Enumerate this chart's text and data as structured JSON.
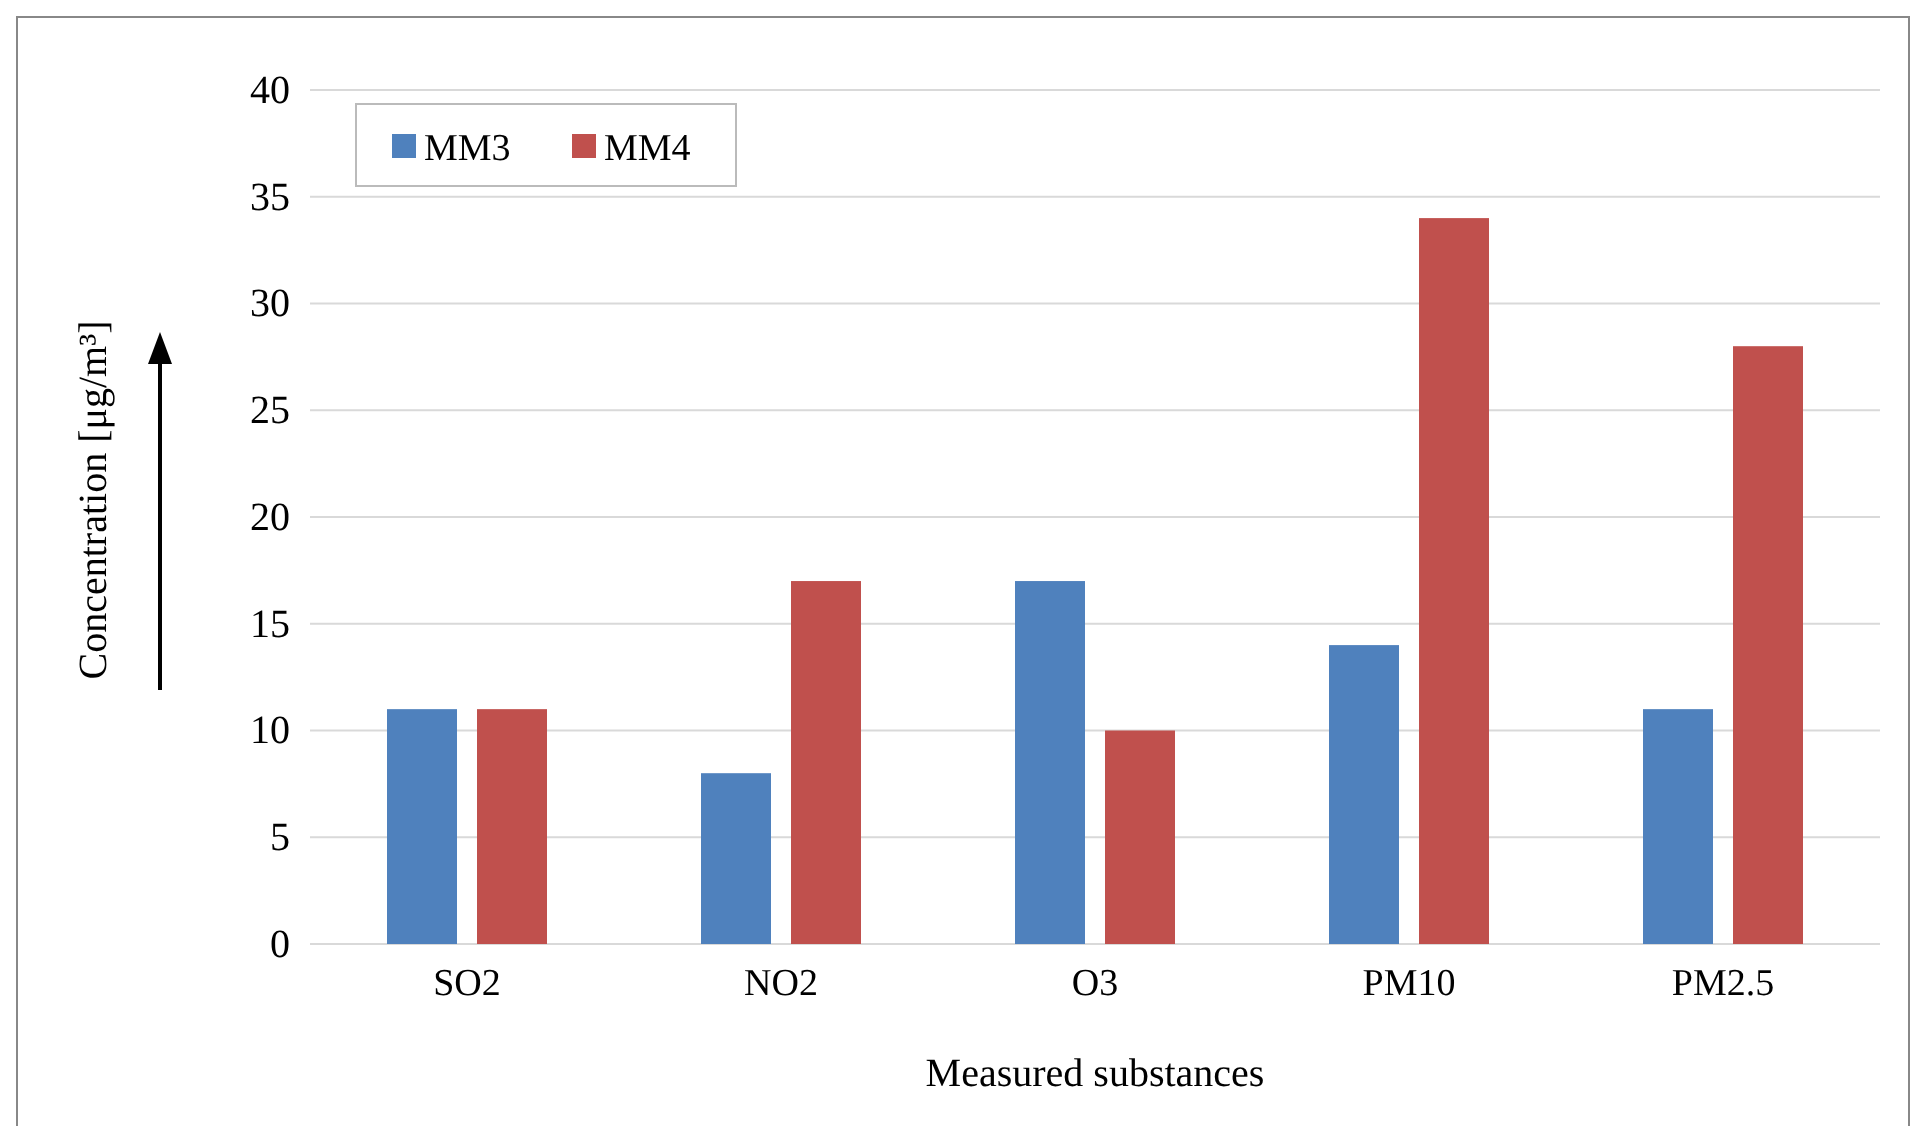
{
  "chart_data": {
    "type": "bar",
    "xlabel": "Measured substances",
    "ylabel": "Concentration [μg/m³]",
    "categories": [
      "SO2",
      "NO2",
      "O3",
      "PM10",
      "PM2.5"
    ],
    "series": [
      {
        "name": "MM3",
        "color": "#4f81bd",
        "values": [
          11,
          8,
          17,
          14,
          11
        ]
      },
      {
        "name": "MM4",
        "color": "#c0504d",
        "values": [
          11,
          17,
          10,
          34,
          28
        ]
      }
    ],
    "ylim": [
      0,
      40
    ],
    "yticks": [
      0,
      5,
      10,
      15,
      20,
      25,
      30,
      35,
      40
    ],
    "grid": "y",
    "legend": "top left"
  }
}
